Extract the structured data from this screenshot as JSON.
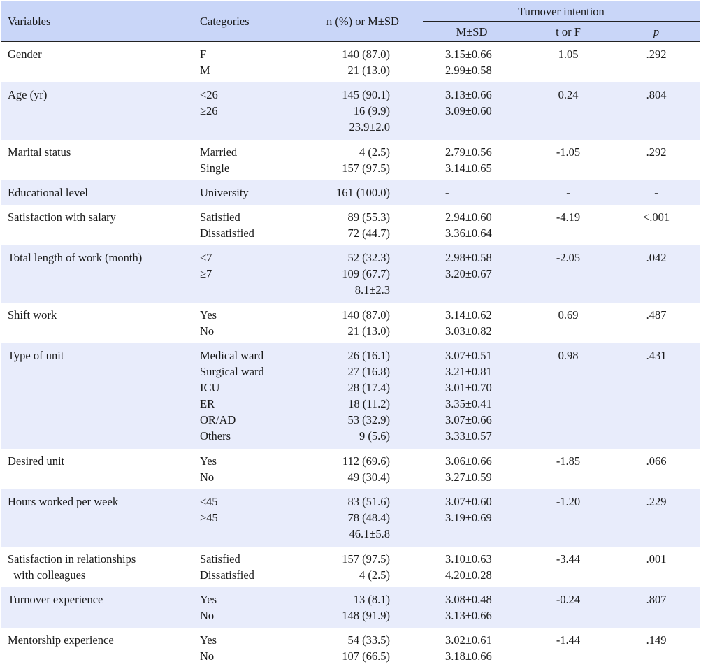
{
  "headers": {
    "variables": "Variables",
    "categories": "Categories",
    "n_pct": "n (%) or M±SD",
    "turnover": "Turnover intention",
    "msd": "M±SD",
    "t_or_f": "t or F",
    "p": "p"
  },
  "rows": [
    {
      "variable": [
        "Gender"
      ],
      "categories": [
        "F",
        "M"
      ],
      "n": [
        "140 (87.0)",
        "21 (13.0)"
      ],
      "msd": [
        "3.15±0.66",
        "2.99±0.58"
      ],
      "t": "1.05",
      "p": ".292"
    },
    {
      "variable": [
        "Age (yr)"
      ],
      "categories": [
        "<26",
        "≥26"
      ],
      "n": [
        "145 (90.1)",
        "16 (9.9)",
        "23.9±2.0"
      ],
      "msd": [
        "3.13±0.66",
        "3.09±0.60"
      ],
      "t": "0.24",
      "p": ".804"
    },
    {
      "variable": [
        "Marital status"
      ],
      "categories": [
        "Married",
        "Single"
      ],
      "n": [
        "4 (2.5)",
        "157 (97.5)"
      ],
      "msd": [
        "2.79±0.56",
        "3.14±0.65"
      ],
      "t": "-1.05",
      "p": ".292"
    },
    {
      "variable": [
        "Educational level"
      ],
      "categories": [
        "University"
      ],
      "n": [
        "161 (100.0)"
      ],
      "msd": [
        "-"
      ],
      "t": "-",
      "p": "-"
    },
    {
      "variable": [
        "Satisfaction with salary"
      ],
      "categories": [
        "Satisfied",
        "Dissatisfied"
      ],
      "n": [
        "89 (55.3)",
        "72 (44.7)"
      ],
      "msd": [
        "2.94±0.60",
        "3.36±0.64"
      ],
      "t": "-4.19",
      "p": "<.001"
    },
    {
      "variable": [
        "Total length of work (month)"
      ],
      "categories": [
        "<7",
        "≥7"
      ],
      "n": [
        "52 (32.3)",
        "109 (67.7)",
        "8.1±2.3"
      ],
      "msd": [
        "2.98±0.58",
        "3.20±0.67"
      ],
      "t": "-2.05",
      "p": ".042"
    },
    {
      "variable": [
        "Shift work"
      ],
      "categories": [
        "Yes",
        "No"
      ],
      "n": [
        "140 (87.0)",
        "21 (13.0)"
      ],
      "msd": [
        "3.14±0.62",
        "3.03±0.82"
      ],
      "t": "0.69",
      "p": ".487"
    },
    {
      "variable": [
        "Type of unit"
      ],
      "categories": [
        "Medical ward",
        "Surgical ward",
        "ICU",
        "ER",
        "OR/AD",
        "Others"
      ],
      "n": [
        "26 (16.1)",
        "27 (16.8)",
        "28 (17.4)",
        "18 (11.2)",
        "53 (32.9)",
        "9 (5.6)"
      ],
      "msd": [
        "3.07±0.51",
        "3.21±0.81",
        "3.01±0.70",
        "3.35±0.41",
        "3.07±0.66",
        "3.33±0.57"
      ],
      "t": "0.98",
      "p": ".431"
    },
    {
      "variable": [
        "Desired unit"
      ],
      "categories": [
        "Yes",
        "No"
      ],
      "n": [
        "112 (69.6)",
        "49 (30.4)"
      ],
      "msd": [
        "3.06±0.66",
        "3.27±0.59"
      ],
      "t": "-1.85",
      "p": ".066"
    },
    {
      "variable": [
        "Hours worked per week"
      ],
      "categories": [
        "≤45",
        ">45"
      ],
      "n": [
        "83 (51.6)",
        "78 (48.4)",
        "46.1±5.8"
      ],
      "msd": [
        "3.07±0.60",
        "3.19±0.69"
      ],
      "t": "-1.20",
      "p": ".229"
    },
    {
      "variable": [
        "Satisfaction in relationships",
        "  with colleagues"
      ],
      "categories": [
        "Satisfied",
        "Dissatisfied"
      ],
      "n": [
        "157 (97.5)",
        "4 (2.5)"
      ],
      "msd": [
        "3.10±0.63",
        "4.20±0.28"
      ],
      "t": "-3.44",
      "p": ".001"
    },
    {
      "variable": [
        "Turnover experience"
      ],
      "categories": [
        "Yes",
        "No"
      ],
      "n": [
        "13 (8.1)",
        "148 (91.9)"
      ],
      "msd": [
        "3.08±0.48",
        "3.13±0.66"
      ],
      "t": "-0.24",
      "p": ".807"
    },
    {
      "variable": [
        "Mentorship experience"
      ],
      "categories": [
        "Yes",
        "No"
      ],
      "n": [
        "54 (33.5)",
        "107 (66.5)"
      ],
      "msd": [
        "3.02±0.61",
        "3.18±0.66"
      ],
      "t": "-1.44",
      "p": ".149"
    }
  ]
}
